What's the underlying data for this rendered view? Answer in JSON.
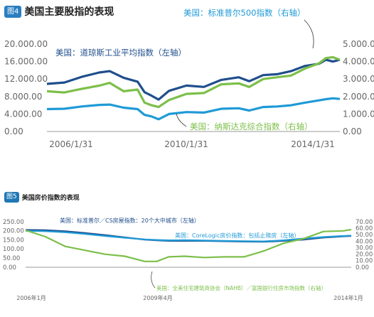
{
  "chart1": {
    "badge": "图4",
    "title": "美国主要股指的表现",
    "left_ticks": [
      "0.00",
      "4.000.00",
      "8.000.00",
      "12.000.00",
      "16.000.00",
      "20.000.00"
    ],
    "right_ticks": [
      "0.00",
      "1.000.00",
      "2.000.00",
      "3.000.00",
      "4.000.00",
      "5.000.00"
    ],
    "x_ticks": [
      "2006/1/31",
      "2010/1/31",
      "2014/1/31"
    ],
    "labels": {
      "dow": "美国：道琼斯工业平均指数（左轴）",
      "sp500": "美国：标准普尔500指数（右轴）",
      "nasdaq": "美国：纳斯达克综合指数（右轴）"
    },
    "colors": {
      "dow": "#1f4e8c",
      "sp500": "#1f9ad6",
      "nasdaq": "#7cbf4a",
      "axis": "#999999",
      "text": "#666666"
    }
  },
  "chart2": {
    "badge": "图5",
    "title": "美国房价指数的表现",
    "left_ticks": [
      "0.00",
      "50.00",
      "100.00",
      "150.00",
      "200.00",
      "250.00"
    ],
    "right_ticks": [
      "0.00",
      "10.00",
      "20.00",
      "30.00",
      "40.00",
      "50.00",
      "60.00",
      "70.00"
    ],
    "x_ticks": [
      "2006年1月",
      "2009年4月",
      "2014年1月"
    ],
    "labels": {
      "cs20": "美国：标准普尔／CS房屋指数：20个大中城市（左轴）",
      "corelogic": "美国：CoreLogic房价指数：包括止赎房（左轴）",
      "nahb": "美国：全美住宅建筑商协会（NAHB）／富国银行住房市场指数（右轴）"
    },
    "colors": {
      "cs20": "#1f4e8c",
      "corelogic": "#1f9ad6",
      "nahb": "#7cbf4a",
      "axis": "#999999",
      "text": "#666666"
    }
  },
  "chart_data": [
    {
      "type": "line",
      "title": "美国主要股指的表现",
      "x_start": 2006.0,
      "x_end": 2014.4,
      "x": [
        2006.0,
        2006.5,
        2007.0,
        2007.5,
        2007.8,
        2008.2,
        2008.6,
        2008.8,
        2009.0,
        2009.2,
        2009.5,
        2010.0,
        2010.5,
        2011.0,
        2011.5,
        2011.8,
        2012.2,
        2012.6,
        2013.0,
        2013.4,
        2013.8,
        2014.0,
        2014.2,
        2014.4
      ],
      "series": [
        {
          "name": "美国：道琼斯工业平均指数（左轴）",
          "axis": "left",
          "values": [
            10900,
            11200,
            12500,
            13500,
            13800,
            12300,
            11400,
            9000,
            8200,
            7300,
            9300,
            10500,
            10200,
            11800,
            12400,
            11500,
            12900,
            13100,
            13800,
            15000,
            15500,
            16400,
            16000,
            16400
          ]
        },
        {
          "name": "美国：标准普尔500指数（右轴）",
          "axis": "right",
          "values": [
            1280,
            1300,
            1430,
            1520,
            1540,
            1360,
            1280,
            950,
            860,
            700,
            1000,
            1110,
            1080,
            1300,
            1330,
            1200,
            1400,
            1430,
            1500,
            1650,
            1780,
            1850,
            1900,
            1860
          ]
        },
        {
          "name": "美国：纳斯达克综合指数（右轴）",
          "axis": "right",
          "values": [
            2300,
            2230,
            2440,
            2620,
            2780,
            2300,
            2400,
            1650,
            1500,
            1400,
            1800,
            2150,
            2200,
            2700,
            2750,
            2550,
            3000,
            3100,
            3200,
            3600,
            3900,
            4200,
            4250,
            4100
          ]
        }
      ],
      "ylim_left": [
        0,
        20000
      ],
      "ylim_right": [
        0,
        5000
      ],
      "x_tick_labels": [
        "2006/1/31",
        "2010/1/31",
        "2014/1/31"
      ]
    },
    {
      "type": "line",
      "title": "美国房价指数的表现",
      "x_start": 2006.0,
      "x_end": 2014.2,
      "x": [
        2006.0,
        2006.5,
        2007.0,
        2007.5,
        2008.0,
        2008.5,
        2009.0,
        2009.3,
        2009.6,
        2010.0,
        2010.5,
        2011.0,
        2011.5,
        2012.0,
        2012.5,
        2013.0,
        2013.5,
        2014.0,
        2014.2
      ],
      "series": [
        {
          "name": "美国：标准普尔／CS房屋指数：20个大中城市（左轴）",
          "axis": "left",
          "values": [
            205,
            204,
            198,
            188,
            177,
            164,
            152,
            148,
            145,
            145,
            145,
            143,
            141,
            140,
            145,
            152,
            163,
            170,
            172
          ]
        },
        {
          "name": "美国：CoreLogic房价指数：包括止赎房（左轴）",
          "axis": "left",
          "values": [
            200,
            198,
            192,
            183,
            172,
            162,
            153,
            150,
            148,
            149,
            147,
            145,
            143,
            142,
            148,
            158,
            166,
            172,
            174
          ]
        },
        {
          "name": "美国：全美住宅建筑商协会（NAHB）／富国银行住房市场指数（右轴）",
          "axis": "right",
          "values": [
            57,
            47,
            32,
            26,
            20,
            17,
            9,
            9,
            16,
            17,
            15,
            16,
            16,
            25,
            37,
            44,
            55,
            56,
            58
          ]
        }
      ],
      "ylim_left": [
        0,
        250
      ],
      "ylim_right": [
        0,
        70
      ],
      "x_tick_labels": [
        "2006年1月",
        "2009年4月",
        "2014年1月"
      ]
    }
  ]
}
